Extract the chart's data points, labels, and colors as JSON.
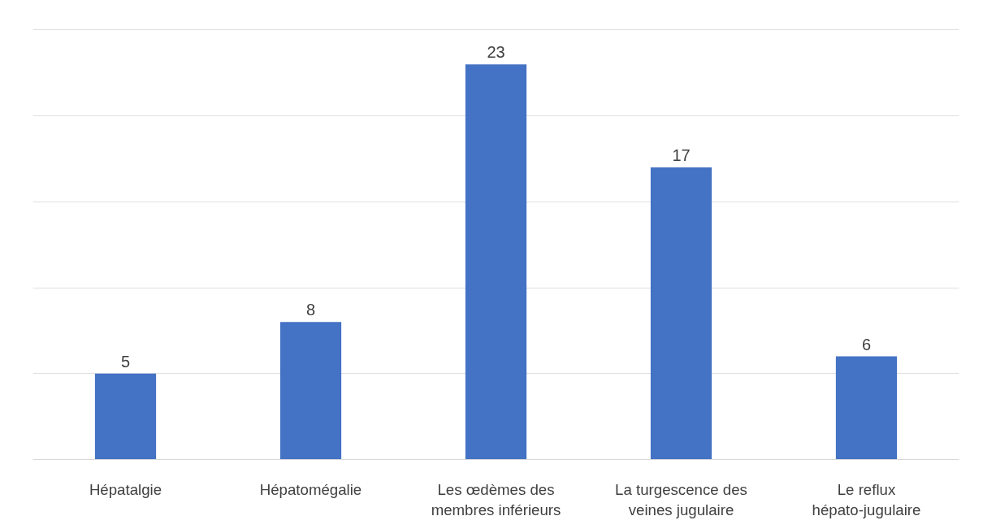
{
  "chart_data": {
    "type": "bar",
    "categories": [
      "Hépatalgie",
      "Hépatomégalie",
      "Les œdèmes des membres inférieurs",
      "La turgescence des veines jugulaire",
      "Le reflux hépato-jugulaire"
    ],
    "values": [
      5,
      8,
      23,
      17,
      6
    ],
    "color": "#4472c4",
    "data_labels": true,
    "grid": "y",
    "tick_labels": "x"
  }
}
